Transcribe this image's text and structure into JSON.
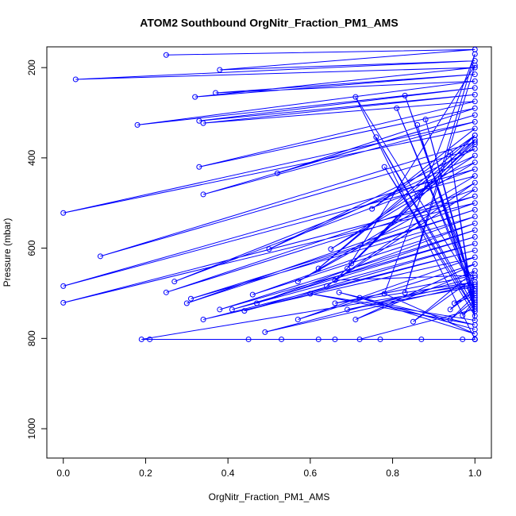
{
  "chart_data": {
    "type": "line",
    "title": "ATOM2 Southbound OrgNitr_Fraction_PM1_AMS",
    "x_label": "OrgNitr_Fraction_PM1_AMS",
    "y_label": "Pressure (mbar)",
    "color": "#0000ff",
    "markers": true,
    "xlim": [
      -0.04,
      1.04
    ],
    "ylim": [
      1065,
      154
    ],
    "xticks": [
      {
        "value": 0,
        "label": "0.0"
      },
      0.2,
      0.4,
      0.6,
      0.8,
      {
        "value": 1,
        "label": "1.0"
      }
    ],
    "yticks": [
      200,
      400,
      600,
      800,
      1000
    ],
    "x": [
      0.25,
      1,
      0.38,
      1,
      0.03,
      1,
      0.32,
      1,
      0.37,
      1,
      0.18,
      1,
      0.33,
      1,
      0.34,
      1,
      0.33,
      1,
      0.52,
      1,
      0.34,
      1,
      0,
      1,
      0.75,
      1,
      0.86,
      1,
      0.09,
      1,
      0.5,
      1,
      0.65,
      1,
      0.27,
      1,
      0,
      1,
      0.57,
      1,
      0.64,
      1,
      0.25,
      1,
      0,
      1,
      0.3,
      1,
      0.31,
      1,
      0.46,
      1,
      0.47,
      1,
      0.38,
      1,
      0.41,
      1,
      0.44,
      1,
      0.34,
      1,
      0.57,
      1,
      0.71,
      1,
      0.85,
      1,
      0.49,
      1,
      0.19,
      1,
      0.21,
      1,
      0.45,
      1,
      0.53,
      1,
      0.62,
      1,
      0.66,
      1,
      0.71,
      1,
      0.83,
      1,
      0.81,
      1,
      0.88,
      1,
      0.86,
      1,
      0.76,
      1,
      0.78,
      1,
      0.94,
      1,
      0.6,
      1,
      0.67,
      1,
      0.72,
      1,
      0.78,
      1,
      0.83,
      1,
      0.69,
      1,
      0.62,
      1,
      0.7,
      1,
      0.66,
      1,
      0.66,
      1,
      0.69,
      1,
      0.94,
      1,
      0.95,
      1,
      0.94,
      1,
      0.97,
      1,
      0.98,
      1,
      0.72,
      0.77,
      0.87,
      0.97,
      1
    ],
    "y": [
      172,
      160,
      205,
      185,
      226,
      200,
      265,
      215,
      256,
      230,
      327,
      245,
      318,
      260,
      323,
      275,
      420,
      290,
      434,
      305,
      481,
      320,
      522,
      335,
      513,
      350,
      484,
      365,
      618,
      380,
      602,
      395,
      602,
      410,
      674,
      425,
      684,
      440,
      674,
      455,
      684,
      470,
      698,
      485,
      721,
      500,
      722,
      515,
      712,
      530,
      703,
      545,
      722,
      560,
      736,
      575,
      736,
      590,
      739,
      605,
      758,
      620,
      758,
      635,
      758,
      650,
      763,
      665,
      786,
      680,
      802,
      802,
      802,
      802,
      802,
      802,
      802,
      802,
      802,
      802,
      802,
      802,
      265,
      690,
      262,
      700,
      290,
      710,
      315,
      720,
      327,
      730,
      354,
      740,
      420,
      750,
      388,
      760,
      701,
      770,
      698,
      780,
      710,
      790,
      701,
      170,
      699,
      195,
      645,
      350,
      645,
      360,
      634,
      370,
      671,
      660,
      722,
      675,
      736,
      685,
      736,
      695,
      722,
      705,
      758,
      715,
      749,
      725,
      684,
      735,
      802,
      802,
      802,
      802,
      802
    ]
  }
}
